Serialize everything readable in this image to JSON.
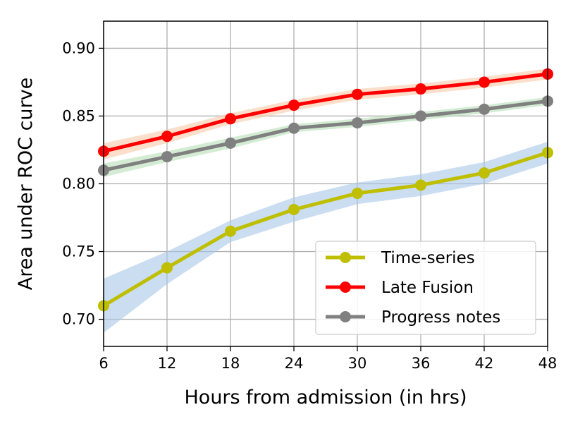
{
  "chart_data": {
    "type": "line",
    "xlabel": "Hours from admission (in hrs)",
    "ylabel": "Area under ROC curve",
    "x": [
      6,
      12,
      18,
      24,
      30,
      36,
      42,
      48
    ],
    "xlim": [
      6,
      48
    ],
    "ylim": [
      0.68,
      0.92
    ],
    "xticks": [
      "6",
      "12",
      "18",
      "24",
      "30",
      "36",
      "42",
      "48"
    ],
    "yticks": [
      "0.70",
      "0.75",
      "0.80",
      "0.85",
      "0.90"
    ],
    "ytick_values": [
      0.7,
      0.75,
      0.8,
      0.85,
      0.9
    ],
    "grid": true,
    "legend_position": "bottom-right",
    "series": [
      {
        "name": "Time-series",
        "color": "#bfbf00",
        "band_color": "#a7c7e7",
        "values": [
          0.71,
          0.738,
          0.765,
          0.781,
          0.793,
          0.799,
          0.808,
          0.823
        ],
        "lower": [
          0.69,
          0.726,
          0.757,
          0.772,
          0.785,
          0.791,
          0.8,
          0.815
        ],
        "upper": [
          0.73,
          0.75,
          0.773,
          0.79,
          0.801,
          0.807,
          0.816,
          0.831
        ]
      },
      {
        "name": "Late Fusion",
        "color": "#ff0000",
        "band_color": "#f8c9a8",
        "values": [
          0.824,
          0.835,
          0.848,
          0.858,
          0.866,
          0.87,
          0.875,
          0.881
        ],
        "lower": [
          0.818,
          0.83,
          0.844,
          0.854,
          0.862,
          0.866,
          0.871,
          0.877
        ],
        "upper": [
          0.83,
          0.84,
          0.852,
          0.862,
          0.87,
          0.874,
          0.879,
          0.885
        ]
      },
      {
        "name": "Progress notes",
        "color": "#808080",
        "band_color": "#b5e0b5",
        "values": [
          0.81,
          0.82,
          0.83,
          0.841,
          0.845,
          0.85,
          0.855,
          0.861
        ],
        "lower": [
          0.805,
          0.816,
          0.826,
          0.838,
          0.842,
          0.847,
          0.852,
          0.858
        ],
        "upper": [
          0.815,
          0.824,
          0.834,
          0.844,
          0.848,
          0.853,
          0.858,
          0.864
        ]
      }
    ]
  }
}
